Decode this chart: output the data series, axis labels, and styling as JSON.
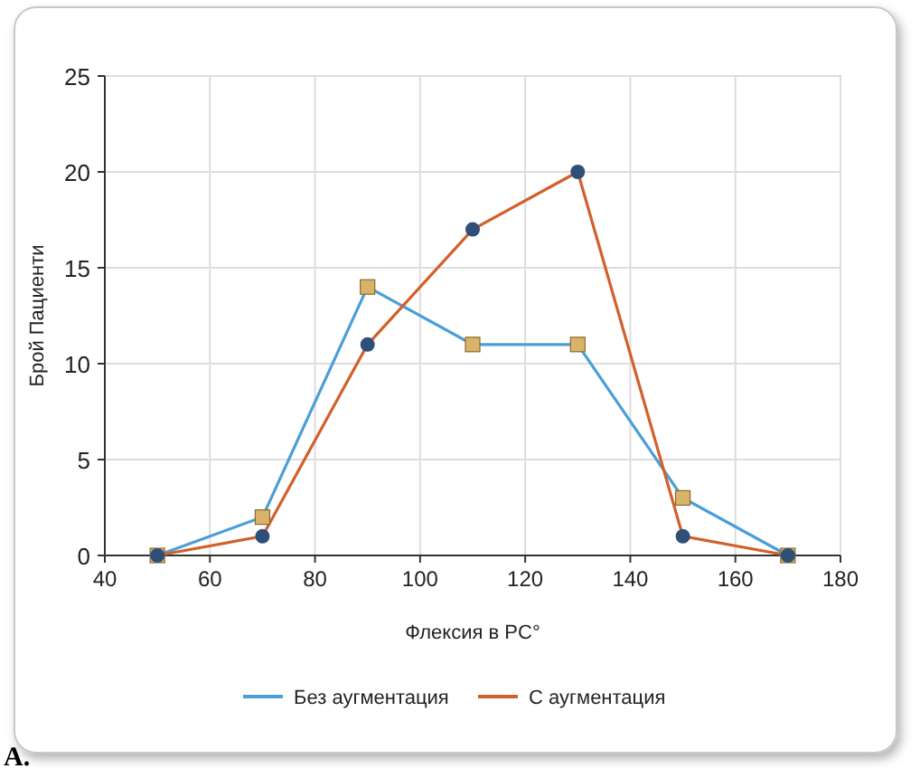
{
  "chart_data": {
    "type": "line",
    "xlabel": "Флексия в PC°",
    "ylabel": "Брой Пациенти",
    "x": [
      50,
      70,
      90,
      110,
      130,
      150,
      170
    ],
    "series": [
      {
        "name": "Без аугментация",
        "color": "#4a9fd6",
        "marker": "square",
        "colors": [
          "#d9b36a",
          "#d9b36a",
          "#d9b36a",
          "#d9b36a",
          "#d9b36a",
          "#d9b36a",
          "#d9b36a"
        ],
        "values": [
          0,
          2,
          14,
          11,
          11,
          3,
          0
        ]
      },
      {
        "name": "С аугментация",
        "color": "#d2602a",
        "marker": "circle",
        "colors": [
          "#2e4f78",
          "#2e4f78",
          "#2e4f78",
          "#2e4f78",
          "#2e4f78",
          "#2e4f78",
          "#2e4f78"
        ],
        "values": [
          0,
          1,
          11,
          17,
          20,
          1,
          0
        ]
      }
    ],
    "xlim": [
      40,
      180
    ],
    "xticks": [
      40,
      60,
      80,
      100,
      120,
      140,
      160,
      180
    ],
    "ylim": [
      0,
      25
    ],
    "yticks": [
      0,
      5,
      10,
      15,
      20,
      25
    ],
    "grid": true,
    "legend": "bottom",
    "line_style": "solid",
    "annotations": [
      "A."
    ]
  }
}
